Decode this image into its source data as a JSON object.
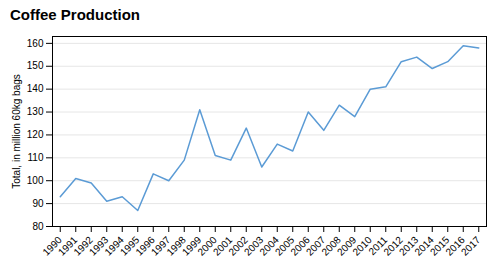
{
  "chart_data": {
    "type": "line",
    "title": "Coffee Production",
    "ylabel": "Total, in million 60kg bags",
    "x": [
      1990,
      1991,
      1992,
      1993,
      1994,
      1995,
      1996,
      1997,
      1998,
      1999,
      2000,
      2001,
      2002,
      2003,
      2004,
      2005,
      2006,
      2007,
      2008,
      2009,
      2010,
      2011,
      2012,
      2013,
      2014,
      2015,
      2016,
      2017
    ],
    "values": [
      93,
      101,
      99,
      91,
      93,
      87,
      103,
      100,
      109,
      131,
      111,
      109,
      123,
      106,
      116,
      113,
      130,
      122,
      133,
      128,
      140,
      141,
      152,
      154,
      149,
      152,
      159,
      158
    ],
    "xlim": [
      1989.5,
      2017.5
    ],
    "xticks": [
      1990,
      1991,
      1992,
      1993,
      1994,
      1995,
      1996,
      1997,
      1998,
      1999,
      2000,
      2001,
      2002,
      2003,
      2004,
      2005,
      2006,
      2007,
      2008,
      2009,
      2010,
      2011,
      2012,
      2013,
      2014,
      2015,
      2016,
      2017
    ],
    "ylim": [
      80,
      163
    ],
    "yticks": [
      80,
      90,
      100,
      110,
      120,
      130,
      140,
      150,
      160
    ],
    "color": "#5b9bd5",
    "grid": true
  }
}
